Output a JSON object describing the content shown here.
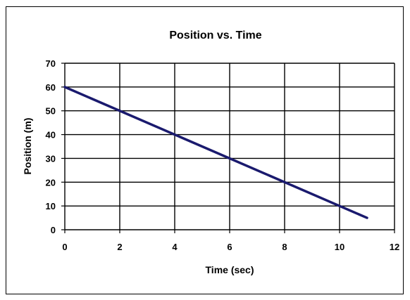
{
  "chart_data": {
    "type": "line",
    "title": "Position vs. Time",
    "xlabel": "Time (sec)",
    "ylabel": "Position (m)",
    "xlim": [
      0,
      12
    ],
    "ylim": [
      0,
      70
    ],
    "xticks": [
      0,
      2,
      4,
      6,
      8,
      10,
      12
    ],
    "yticks": [
      0,
      10,
      20,
      30,
      40,
      50,
      60,
      70
    ],
    "grid": true,
    "series": [
      {
        "x": [
          0,
          11
        ],
        "y": [
          60,
          5
        ],
        "color": "#1a1a6e"
      }
    ]
  }
}
